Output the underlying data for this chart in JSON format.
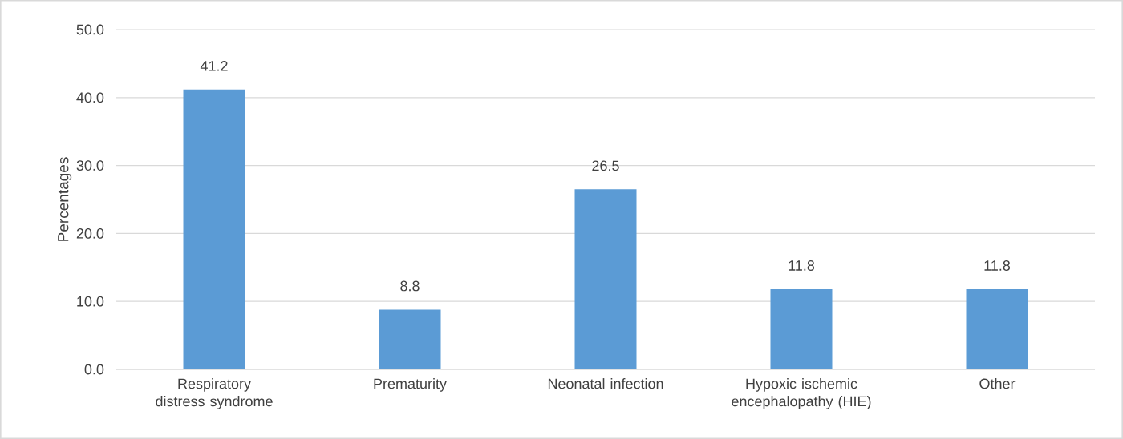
{
  "chart_data": {
    "type": "bar",
    "ylabel": "Percentages",
    "categories": [
      "Respiratory distress syndrome",
      "Prematurity",
      "Neonatal infection",
      "Hypoxic ischemic encephalopathy (HIE)",
      "Other"
    ],
    "values": [
      41.2,
      8.8,
      26.5,
      11.8,
      11.8
    ],
    "color": "#5b9bd5",
    "ylim": [
      0,
      50
    ],
    "yticks": [
      {
        "value": 0,
        "label": "0.0"
      },
      {
        "value": 10,
        "label": "10.0"
      },
      {
        "value": 20,
        "label": "20.0"
      },
      {
        "value": 30,
        "label": "30.0"
      },
      {
        "value": 40,
        "label": "40.0"
      },
      {
        "value": 50,
        "label": "50.0"
      }
    ],
    "grid": "y",
    "data_labels": true
  }
}
